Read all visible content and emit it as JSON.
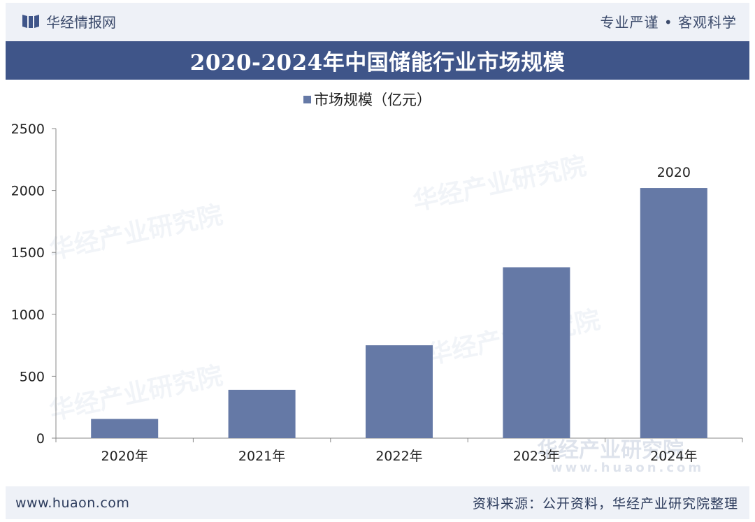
{
  "header": {
    "brand": "华经情报网",
    "tagline": "专业严谨 • 客观科学"
  },
  "chart_title": "2020-2024年中国储能行业市场规模",
  "footer": {
    "website": "www.huaon.com",
    "source": "资料来源：公开资料，华经产业研究院整理"
  },
  "watermarks": [
    "华经产业研究院",
    "华经产业研究院",
    "华经产业研究院",
    "华经产业研究院",
    "华经产业研究院"
  ],
  "watermark_url": "www.huaon.com",
  "colors": {
    "bar": "#6579a6",
    "title_bg": "#3f5589",
    "axis": "#888888"
  },
  "chart_data": {
    "type": "bar",
    "title": "2020-2024年中国储能行业市场规模",
    "categories": [
      "2020年",
      "2021年",
      "2022年",
      "2023年",
      "2024年"
    ],
    "series": [
      {
        "name": "市场规模（亿元）",
        "values": [
          155,
          390,
          750,
          1380,
          2020
        ]
      }
    ],
    "data_labels": {
      "4": "2020"
    },
    "ylim": [
      0,
      2500
    ],
    "yticks": [
      0,
      500,
      1000,
      1500,
      2000,
      2500
    ],
    "xlabel": "",
    "ylabel": "",
    "grid": false,
    "legend_position": "top-center"
  }
}
